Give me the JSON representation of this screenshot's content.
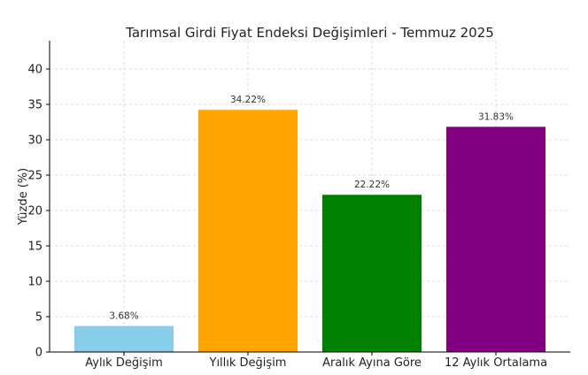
{
  "chart_data": {
    "type": "bar",
    "title": "Tarımsal Girdi Fiyat Endeksi Değişimleri - Temmuz 2025",
    "xlabel": "",
    "ylabel": "Yüzde (%)",
    "ylim": [
      0,
      44
    ],
    "yticks": [
      0,
      5,
      10,
      15,
      20,
      25,
      30,
      35,
      40
    ],
    "grid": true,
    "categories": [
      "Aylık Değişim",
      "Yıllık Değişim",
      "Aralık Ayına Göre",
      "12 Aylık Ortalama"
    ],
    "values": [
      3.68,
      34.22,
      22.22,
      31.83
    ],
    "data_labels": [
      "3.68%",
      "34.22%",
      "22.22%",
      "31.83%"
    ],
    "colors": [
      "#87ceeb",
      "#ffa500",
      "#008000",
      "#800080"
    ]
  }
}
